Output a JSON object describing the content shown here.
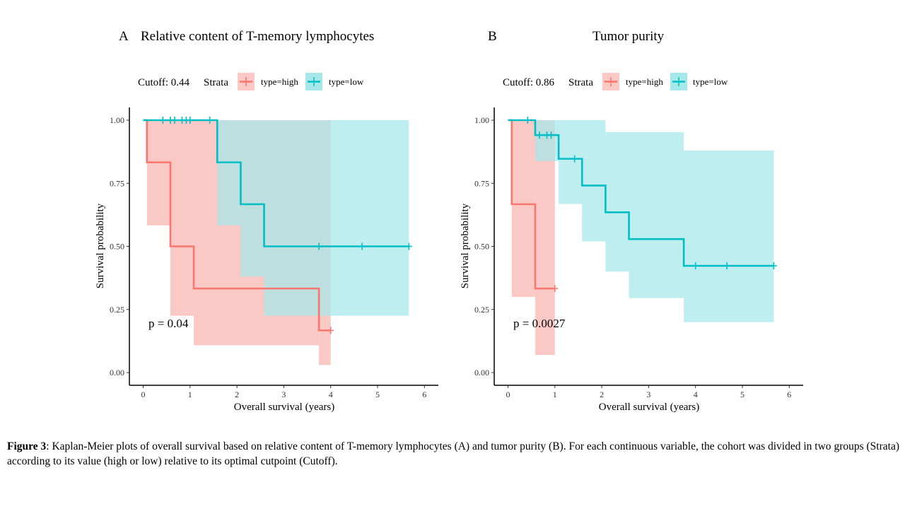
{
  "panels": [
    {
      "letter": "A",
      "title": "Relative content of T-memory lymphocytes",
      "cutoff_label": "Cutoff: 0.44",
      "strata_label": "Strata",
      "legend": [
        "type=high",
        "type=low"
      ],
      "p_value": "p = 0.04",
      "xlabel": "Overall survival (years)",
      "ylabel": "Survival probability",
      "x_ticks": [
        "0",
        "1",
        "2",
        "3",
        "4",
        "5",
        "6"
      ],
      "y_ticks": [
        "0.00",
        "0.25",
        "0.50",
        "0.75",
        "1.00"
      ]
    },
    {
      "letter": "B",
      "title": "Tumor purity",
      "cutoff_label": "Cutoff: 0.86",
      "strata_label": "Strata",
      "legend": [
        "type=high",
        "type=low"
      ],
      "p_value": "p = 0.0027",
      "xlabel": "Overall survival (years)",
      "ylabel": "Survival probability",
      "x_ticks": [
        "0",
        "1",
        "2",
        "3",
        "4",
        "5",
        "6"
      ],
      "y_ticks": [
        "0.00",
        "0.25",
        "0.50",
        "0.75",
        "1.00"
      ]
    }
  ],
  "caption": {
    "label": "Figure 3",
    "text": ": Kaplan-Meier  plots of overall survival  based on relative  content of T-memory lymphocytes (A) and tumor purity (B). For each continuous variable,  the cohort was divided  in  two groups (Strata) according to its value  (high  or low) relative  to its optimal cutpoint (Cutoff)."
  },
  "colors": {
    "high": "#f8766d",
    "low": "#00bfc4",
    "high_fill": "#fbc9c5",
    "low_fill": "#a6e8ea",
    "overlap": "#b6c3c1"
  },
  "chart_data": [
    {
      "type": "line",
      "subtype": "kaplan-meier",
      "title": "Relative content of T-memory lymphocytes",
      "xlabel": "Overall survival (years)",
      "ylabel": "Survival probability",
      "xlim": [
        -0.2,
        6.3
      ],
      "ylim": [
        -0.03,
        1.03
      ],
      "series": [
        {
          "name": "type=high",
          "color": "#f8766d",
          "steps": [
            [
              0,
              1.0
            ],
            [
              0.08,
              0.833
            ],
            [
              0.58,
              0.5
            ],
            [
              1.08,
              0.333
            ],
            [
              3.75,
              0.167
            ]
          ],
          "end": 4.0,
          "ci": [
            [
              0,
              1.0,
              1.0
            ],
            [
              0.08,
              0.583,
              1.0
            ],
            [
              0.58,
              0.225,
              1.0
            ],
            [
              1.08,
              0.108,
              1.0
            ],
            [
              3.75,
              0.03,
              1.0
            ]
          ],
          "censored": [
            [
              4.0,
              0.167
            ]
          ]
        },
        {
          "name": "type=low",
          "color": "#00bfc4",
          "steps": [
            [
              0,
              1.0
            ],
            [
              1.58,
              0.833
            ],
            [
              2.08,
              0.667
            ],
            [
              2.58,
              0.5
            ]
          ],
          "end": 5.67,
          "ci": [
            [
              0,
              1.0,
              1.0
            ],
            [
              1.58,
              0.583,
              1.0
            ],
            [
              2.08,
              0.38,
              1.0
            ],
            [
              2.58,
              0.225,
              1.0
            ]
          ],
          "censored": [
            [
              0.42,
              1.0
            ],
            [
              0.58,
              1.0
            ],
            [
              0.67,
              1.0
            ],
            [
              0.83,
              1.0
            ],
            [
              0.92,
              1.0
            ],
            [
              1.0,
              1.0
            ],
            [
              1.42,
              1.0
            ],
            [
              3.75,
              0.5
            ],
            [
              4.67,
              0.5
            ],
            [
              5.67,
              0.5
            ]
          ]
        }
      ],
      "annotation": "p = 0.04"
    },
    {
      "type": "line",
      "subtype": "kaplan-meier",
      "title": "Tumor purity",
      "xlabel": "Overall survival (years)",
      "ylabel": "Survival probability",
      "xlim": [
        -0.2,
        6.3
      ],
      "ylim": [
        -0.03,
        1.03
      ],
      "series": [
        {
          "name": "type=high",
          "color": "#f8766d",
          "steps": [
            [
              0,
              1.0
            ],
            [
              0.08,
              0.667
            ],
            [
              0.58,
              0.333
            ]
          ],
          "end": 1.0,
          "ci": [
            [
              0,
              1.0,
              1.0
            ],
            [
              0.08,
              0.3,
              1.0
            ],
            [
              0.58,
              0.07,
              1.0
            ]
          ],
          "censored": [
            [
              1.0,
              0.333
            ]
          ]
        },
        {
          "name": "type=low",
          "color": "#00bfc4",
          "steps": [
            [
              0,
              1.0
            ],
            [
              0.58,
              0.941
            ],
            [
              1.08,
              0.847
            ],
            [
              1.58,
              0.741
            ],
            [
              2.08,
              0.635
            ],
            [
              2.58,
              0.529
            ],
            [
              3.75,
              0.423
            ]
          ],
          "end": 5.67,
          "ci": [
            [
              0,
              1.0,
              1.0
            ],
            [
              0.58,
              0.838,
              1.0
            ],
            [
              1.08,
              0.668,
              1.0
            ],
            [
              1.58,
              0.52,
              1.0
            ],
            [
              2.08,
              0.4,
              0.953
            ],
            [
              2.58,
              0.295,
              0.953
            ],
            [
              3.75,
              0.2,
              0.88
            ]
          ],
          "censored": [
            [
              0.42,
              1.0
            ],
            [
              0.67,
              0.941
            ],
            [
              0.83,
              0.941
            ],
            [
              0.92,
              0.941
            ],
            [
              1.42,
              0.847
            ],
            [
              4.0,
              0.423
            ],
            [
              4.67,
              0.423
            ],
            [
              5.67,
              0.423
            ]
          ]
        }
      ],
      "annotation": "p = 0.0027"
    }
  ]
}
